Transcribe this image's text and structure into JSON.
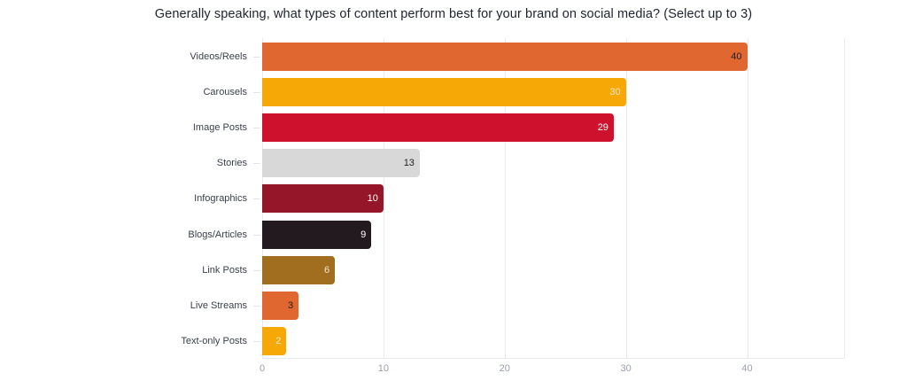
{
  "chart_data": {
    "type": "bar",
    "orientation": "horizontal",
    "title": "Generally speaking, what types of content perform best for your brand on social media? (Select up to 3)",
    "xlabel": "",
    "ylabel": "",
    "categories": [
      "Videos/Reels",
      "Carousels",
      "Image Posts",
      "Stories",
      "Infographics",
      "Blogs/Articles",
      "Link Posts",
      "Live Streams",
      "Text-only Posts"
    ],
    "values": [
      40,
      30,
      29,
      13,
      10,
      9,
      6,
      3,
      2
    ],
    "colors": [
      "#E0672F",
      "#F5A806",
      "#CE122D",
      "#D8D8D8",
      "#951628",
      "#231A1F",
      "#A16D1F",
      "#E0672F",
      "#F5A806"
    ],
    "label_colors": [
      "#1f1f1f",
      "#fdeccb",
      "#ffffff",
      "#1f1f1f",
      "#ffffff",
      "#ffffff",
      "#f3e6d0",
      "#1f1f1f",
      "#fdeccb"
    ],
    "xticks": [
      0,
      10,
      20,
      30,
      40
    ],
    "xlim": [
      0,
      48
    ],
    "grid": true,
    "legend": null,
    "data_labels": true
  }
}
